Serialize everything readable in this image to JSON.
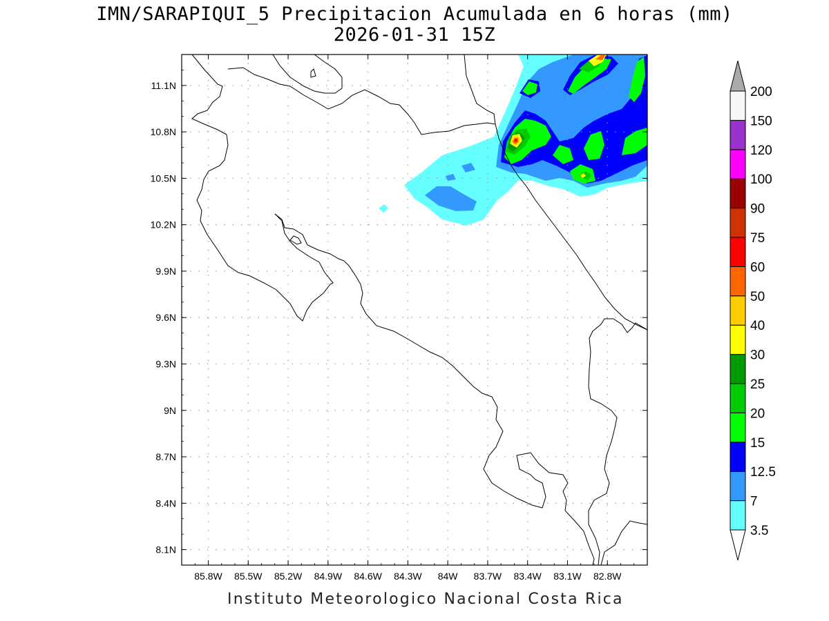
{
  "title_line1": "IMN/SARAPIQUI_5 Precipitacion Acumulada en 6 horas (mm)",
  "title_line2": "2026-01-31 15Z",
  "credit": "Instituto Meteorologico Nacional Costa Rica",
  "map": {
    "lon_range": [
      -86.0,
      -82.5
    ],
    "lat_range": [
      8.0,
      11.3
    ],
    "lon_ticks": [
      {
        "v": -85.8,
        "label": "85.8W"
      },
      {
        "v": -85.5,
        "label": "85.5W"
      },
      {
        "v": -85.2,
        "label": "85.2W"
      },
      {
        "v": -84.9,
        "label": "84.9W"
      },
      {
        "v": -84.6,
        "label": "84.6W"
      },
      {
        "v": -84.3,
        "label": "84.3W"
      },
      {
        "v": -84.0,
        "label": "84W"
      },
      {
        "v": -83.7,
        "label": "83.7W"
      },
      {
        "v": -83.4,
        "label": "83.4W"
      },
      {
        "v": -83.1,
        "label": "83.1W"
      },
      {
        "v": -82.8,
        "label": "82.8W"
      }
    ],
    "lat_ticks": [
      {
        "v": 11.1,
        "label": "11.1N"
      },
      {
        "v": 10.8,
        "label": "10.8N"
      },
      {
        "v": 10.5,
        "label": "10.5N"
      },
      {
        "v": 10.2,
        "label": "10.2N"
      },
      {
        "v": 9.9,
        "label": "9.9N"
      },
      {
        "v": 9.6,
        "label": "9.6N"
      },
      {
        "v": 9.3,
        "label": "9.3N"
      },
      {
        "v": 9.0,
        "label": "9N"
      },
      {
        "v": 8.7,
        "label": "8.7N"
      },
      {
        "v": 8.4,
        "label": "8.4N"
      },
      {
        "v": 8.1,
        "label": "8.1N"
      }
    ]
  },
  "colorbar": {
    "levels": [
      "3.5",
      "7",
      "12.5",
      "15",
      "20",
      "25",
      "30",
      "40",
      "50",
      "60",
      "75",
      "90",
      "100",
      "120",
      "150",
      "200"
    ],
    "colors": [
      "#66ffff",
      "#3399ff",
      "#0000ff",
      "#00ff00",
      "#00cc00",
      "#009900",
      "#ffff00",
      "#ffcc00",
      "#ff6600",
      "#ff0000",
      "#cc3300",
      "#990000",
      "#ff00ff",
      "#9933cc",
      "#f7f7f7"
    ],
    "under_color": "#ffffff",
    "over_color": "#aaaaaa"
  }
}
